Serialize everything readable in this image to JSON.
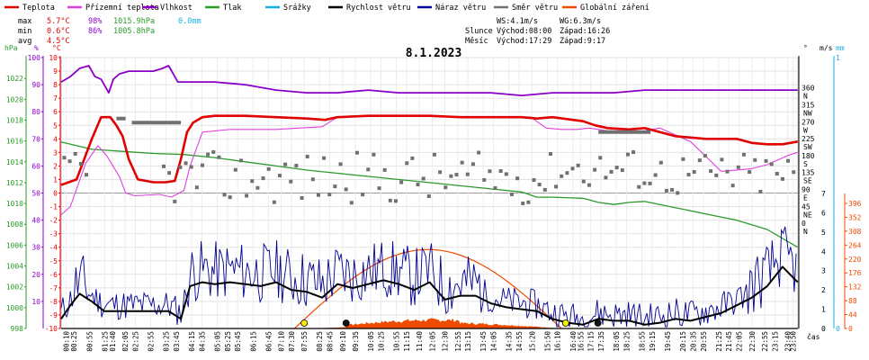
{
  "legend": [
    {
      "label": "Teplota",
      "color": "#e00000"
    },
    {
      "label": "Přízemní teplota",
      "color": "#e040e0"
    },
    {
      "label": "Vlhkost",
      "color": "#8a00c8"
    },
    {
      "label": "Tlak",
      "color": "#2a9a2a"
    },
    {
      "label": "Srážky",
      "color": "#18b0e0"
    },
    {
      "label": "Rychlost větru",
      "color": "#000000"
    },
    {
      "label": "Náraz větru",
      "color": "#000090"
    },
    {
      "label": "Směr větru",
      "color": "#707070"
    },
    {
      "label": "Globální záření",
      "color": "#f04a00"
    }
  ],
  "stats": {
    "max_label": "max",
    "max_temp": "5.7°C",
    "max_hum": "98%",
    "max_press": "1015.9hPa",
    "max_rain": "0.0mm",
    "min_label": "min",
    "min_temp": "0.6°C",
    "min_hum": "86%",
    "min_press": "1005.8hPa",
    "avg_label": "avg",
    "avg_temp": "4.5°C"
  },
  "wind_info": {
    "ws": "WS:4.1m/s",
    "wg": "WG:6.3m/s"
  },
  "sun": {
    "label": "Slunce",
    "rise": "Východ:08:00",
    "set": "Západ:16:26"
  },
  "moon": {
    "label": "Měsíc",
    "rise": "Východ:17:29",
    "set": "Západ:9:17"
  },
  "colors": {
    "temp": "#e00000",
    "ground": "#e040e0",
    "hum": "#8a00c8",
    "press": "#2a9a2a",
    "rain": "#18b0e0",
    "wind": "#000000",
    "gust": "#000090",
    "dir": "#707070",
    "solar": "#f04a00",
    "axis_green": "#2a9a2a",
    "axis_red": "#e00000",
    "axis_purple": "#8a00c8",
    "axis_orange": "#f04a00",
    "axis_cyan": "#18b0e0",
    "grid": "#c8c8c8"
  },
  "chart_data": {
    "type": "line",
    "title": "8.1.2023",
    "xlabel": "čas",
    "x_ticks": [
      "00:10",
      "00:25",
      "00:55",
      "01:25",
      "01:40",
      "02:05",
      "02:25",
      "02:55",
      "03:25",
      "03:45",
      "04:15",
      "04:35",
      "05:05",
      "05:25",
      "05:45",
      "06:15",
      "06:45",
      "07:10",
      "07:30",
      "07:55",
      "08:25",
      "08:45",
      "09:10",
      "09:35",
      "10:05",
      "10:25",
      "10:55",
      "11:15",
      "11:40",
      "12:05",
      "12:30",
      "12:55",
      "13:15",
      "13:45",
      "14:05",
      "14:35",
      "14:55",
      "15:20",
      "15:50",
      "16:10",
      "16:40",
      "16:55",
      "17:15",
      "17:35",
      "18:05",
      "18:25",
      "18:55",
      "19:15",
      "19:45",
      "20:15",
      "20:35",
      "20:55",
      "21:25",
      "21:45",
      "22:05",
      "22:30",
      "22:55",
      "23:15",
      "23:40",
      "23:50"
    ],
    "axes": {
      "pressure": {
        "label": "hPa",
        "min": 998,
        "max": 1024,
        "ticks": [
          998,
          1000,
          1002,
          1004,
          1006,
          1008,
          1010,
          1012,
          1014,
          1016,
          1018,
          1020,
          1022
        ]
      },
      "humidity": {
        "label": "%",
        "min": 0,
        "max": 100,
        "ticks": [
          10,
          20,
          30,
          40,
          50,
          60,
          70,
          80,
          90,
          100
        ]
      },
      "temperature": {
        "label": "°C",
        "min": -10,
        "max": 10,
        "ticks": [
          -10,
          -9,
          -8,
          -7,
          -6,
          -5,
          -4,
          -3,
          -2,
          -1,
          0,
          1,
          2,
          3,
          4,
          5,
          6,
          7,
          8,
          9,
          10
        ]
      },
      "direction": {
        "label": "°",
        "ticks": [
          {
            "v": 0,
            "d": "N"
          },
          {
            "v": 45,
            "d": "NE"
          },
          {
            "v": 90,
            "d": "E"
          },
          {
            "v": 135,
            "d": "SE"
          },
          {
            "v": 180,
            "d": "S"
          },
          {
            "v": 225,
            "d": "SW"
          },
          {
            "v": 270,
            "d": "W"
          },
          {
            "v": 315,
            "d": "NW"
          },
          {
            "v": 360,
            "d": "N"
          }
        ]
      },
      "wind": {
        "label": "m/s",
        "min": 0,
        "max": 7,
        "ticks": [
          0,
          1,
          2,
          3,
          4,
          5,
          6,
          7
        ]
      },
      "rain": {
        "label": "mm",
        "ticks": [
          0,
          1
        ]
      },
      "solar": {
        "min": 0,
        "max": 396,
        "ticks": [
          0,
          44,
          88,
          132,
          176,
          220,
          264,
          308,
          352,
          396
        ]
      }
    },
    "series": [
      {
        "name": "Teplota",
        "axis": "temperature",
        "x": [
          0,
          0.5,
          1,
          1.3,
          1.6,
          1.8,
          2.0,
          2.2,
          2.5,
          3,
          3.4,
          3.7,
          3.9,
          4.1,
          4.3,
          4.6,
          5,
          6,
          7,
          8,
          8.6,
          9,
          10,
          11,
          12,
          13,
          14,
          15,
          15.5,
          16,
          17,
          17.4,
          17.8,
          18.5,
          19,
          20,
          21,
          22,
          22.5,
          23,
          23.5,
          23.99
        ],
        "y": [
          0.6,
          1.0,
          4.0,
          5.6,
          5.6,
          5.0,
          4.2,
          2.5,
          1.0,
          0.8,
          0.8,
          0.9,
          2.5,
          4.5,
          5.2,
          5.6,
          5.7,
          5.7,
          5.6,
          5.5,
          5.4,
          5.6,
          5.7,
          5.7,
          5.7,
          5.6,
          5.6,
          5.6,
          5.5,
          5.6,
          5.3,
          5.0,
          4.8,
          4.7,
          4.8,
          4.2,
          4.0,
          4.0,
          3.7,
          3.6,
          3.6,
          3.8
        ]
      },
      {
        "name": "Přízemní teplota",
        "axis": "temperature",
        "x": [
          0,
          0.3,
          0.8,
          1.2,
          1.5,
          1.9,
          2.1,
          2.4,
          3.2,
          3.6,
          4.0,
          4.2,
          4.6,
          5.5,
          7,
          8.5,
          9.0,
          9.5,
          10,
          12,
          14,
          15.3,
          15.8,
          16.3,
          16.8,
          17.2,
          17.8,
          18.3,
          18.8,
          19.5,
          20.5,
          21.5,
          22.5,
          23,
          23.7,
          23.99
        ],
        "y": [
          -1.6,
          -1.0,
          2.2,
          3.5,
          2.7,
          1.2,
          0.0,
          -0.2,
          -0.1,
          -0.3,
          0.2,
          2.0,
          4.5,
          4.7,
          4.7,
          4.9,
          5.6,
          5.7,
          5.7,
          5.7,
          5.6,
          5.6,
          4.8,
          4.7,
          4.7,
          4.8,
          4.6,
          4.6,
          4.5,
          4.8,
          3.8,
          1.6,
          1.8,
          2.1,
          2.8,
          3.0
        ]
      },
      {
        "name": "Vlhkost",
        "axis": "humidity",
        "x": [
          0,
          0.3,
          0.6,
          0.9,
          1.1,
          1.3,
          1.55,
          1.7,
          1.9,
          2.2,
          2.6,
          3,
          3.3,
          3.5,
          3.8,
          4.3,
          5,
          6,
          7,
          8,
          9,
          10,
          11,
          12,
          13,
          14,
          15,
          16,
          17,
          18,
          19,
          20,
          21,
          22,
          23,
          23.99
        ],
        "y": [
          91,
          93,
          96,
          97,
          93,
          92,
          87,
          92,
          94,
          95,
          95,
          95,
          96,
          97,
          91,
          91,
          91,
          90,
          88,
          87,
          87,
          88,
          87,
          87,
          87,
          87,
          86,
          87,
          87,
          87,
          88,
          88,
          88,
          88,
          88,
          88
        ]
      },
      {
        "name": "Tlak",
        "axis": "pressure",
        "x": [
          0,
          1,
          2,
          3,
          4,
          5,
          6,
          7,
          8,
          9,
          10,
          11,
          12,
          13,
          14,
          15,
          15.5,
          16,
          17,
          17.5,
          18,
          18.5,
          19,
          20,
          21,
          22,
          23,
          23.99
        ],
        "y": [
          1015.9,
          1015.2,
          1015.0,
          1014.8,
          1014.7,
          1014.4,
          1014.0,
          1013.6,
          1013.2,
          1012.9,
          1012.6,
          1012.3,
          1012.0,
          1011.7,
          1011.4,
          1011.1,
          1010.6,
          1010.6,
          1010.5,
          1010.1,
          1009.9,
          1010.1,
          1010.2,
          1009.6,
          1009.0,
          1008.4,
          1007.5,
          1005.8
        ]
      },
      {
        "name": "Globální záření",
        "axis": "solar",
        "x": [
          7.6,
          8,
          8.5,
          9,
          9.5,
          10,
          10.5,
          11,
          11.5,
          12,
          12.5,
          13,
          13.5,
          14,
          14.5,
          15,
          15.5,
          15.9,
          16.3
        ],
        "y": [
          0,
          20,
          45,
          70,
          105,
          150,
          190,
          225,
          240,
          250,
          245,
          225,
          190,
          150,
          110,
          70,
          40,
          10,
          0
        ]
      },
      {
        "name": "Rychlost větru",
        "axis": "wind",
        "x": [
          0,
          0.3,
          0.6,
          1,
          1.4,
          2,
          2.5,
          3,
          3.5,
          3.9,
          4.2,
          4.6,
          5,
          5.5,
          6,
          6.5,
          7,
          7.5,
          8,
          8.5,
          9,
          9.5,
          10,
          10.5,
          11,
          11.5,
          12,
          12.5,
          13,
          13.5,
          14,
          14.5,
          15,
          15.5,
          16,
          16.5,
          17,
          17.5,
          18,
          18.5,
          19,
          19.5,
          20,
          20.5,
          21,
          21.5,
          22,
          22.5,
          23,
          23.5,
          23.99
        ],
        "y": [
          0.5,
          1.2,
          1.8,
          1.4,
          0.9,
          0.9,
          0.9,
          0.9,
          0.9,
          0.5,
          2.2,
          2.4,
          2.3,
          2.4,
          2.3,
          2.2,
          2.4,
          2.0,
          1.9,
          1.6,
          2.3,
          2.1,
          2.3,
          2.5,
          2.3,
          2.0,
          2.4,
          1.5,
          1.7,
          1.7,
          1.3,
          1.1,
          1.0,
          0.9,
          0.5,
          0.3,
          0.2,
          0.5,
          0.4,
          0.4,
          0.2,
          0.3,
          0.5,
          0.4,
          0.6,
          0.8,
          1.2,
          1.6,
          2.2,
          3.2,
          2.4
        ]
      }
    ],
    "gust_note": "Náraz větru fluctuates strongly between about 0.5 and 5 m/s",
    "direction_points": "scattered between NE and SW, mostly E to SE",
    "markers": [
      {
        "time": "07:55",
        "type": "sunrise"
      },
      {
        "time": "16:26",
        "type": "sunset"
      },
      {
        "time": "09:17",
        "type": "moonset"
      },
      {
        "time": "17:29",
        "type": "moonrise"
      }
    ]
  }
}
